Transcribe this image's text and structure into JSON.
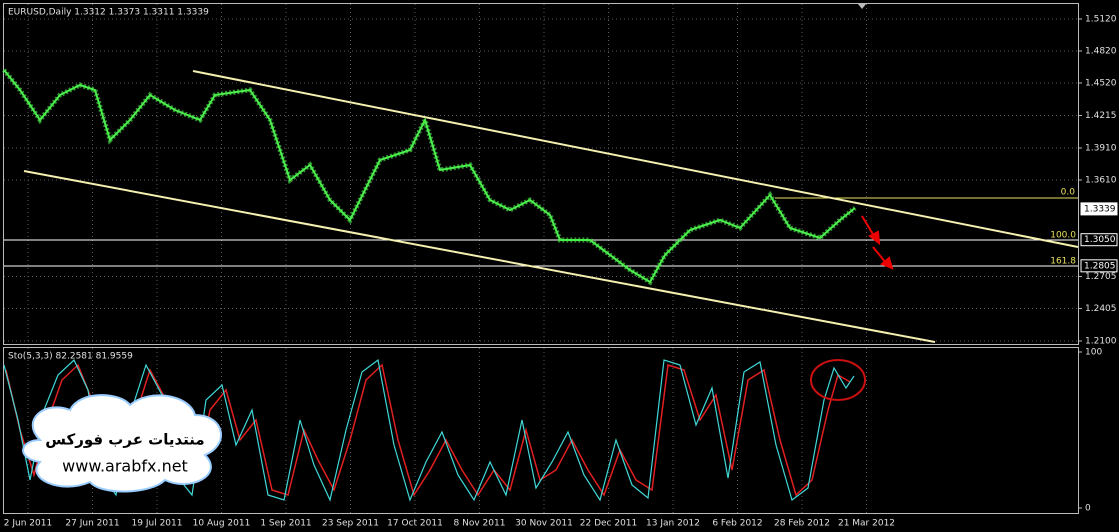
{
  "header": {
    "title": "EURUSD,Daily  1.3312 1.3373 1.3311 1.3339"
  },
  "price_axis": [
    {
      "value": 1.512,
      "label": "1.5120"
    },
    {
      "value": 1.482,
      "label": "1.4820"
    },
    {
      "value": 1.452,
      "label": "1.4520"
    },
    {
      "value": 1.4215,
      "label": "1.4215"
    },
    {
      "value": 1.391,
      "label": "1.3910"
    },
    {
      "value": 1.361,
      "label": "1.3610"
    },
    {
      "value": 1.2705,
      "label": "1.2705"
    },
    {
      "value": 1.2405,
      "label": "1.2405"
    },
    {
      "value": 1.21,
      "label": "1.2100"
    }
  ],
  "price_markers": [
    {
      "value": 1.3339,
      "label": "1.3339"
    },
    {
      "value": 1.305,
      "label": "1.3050"
    },
    {
      "value": 1.2805,
      "label": "1.2805"
    }
  ],
  "fib_levels": [
    "0.0",
    "100.0",
    "161.8"
  ],
  "indicator": {
    "label": "Sto(5,3,3) 82.2581 81.9559",
    "axis": [
      100,
      0
    ]
  },
  "dates": [
    "2 Jun 2011",
    "27 Jun 2011",
    "19 Jul 2011",
    "10 Aug 2011",
    "1 Sep 2011",
    "23 Sep 2011",
    "17 Oct 2011",
    "8 Nov 2011",
    "30 Nov 2011",
    "22 Dec 2011",
    "13 Jan 2012",
    "6 Feb 2012",
    "28 Feb 2012",
    "21 Mar 2012"
  ],
  "watermark": {
    "name": "منتديات عرب فوركس",
    "url": "www.arabfx.net"
  }
}
